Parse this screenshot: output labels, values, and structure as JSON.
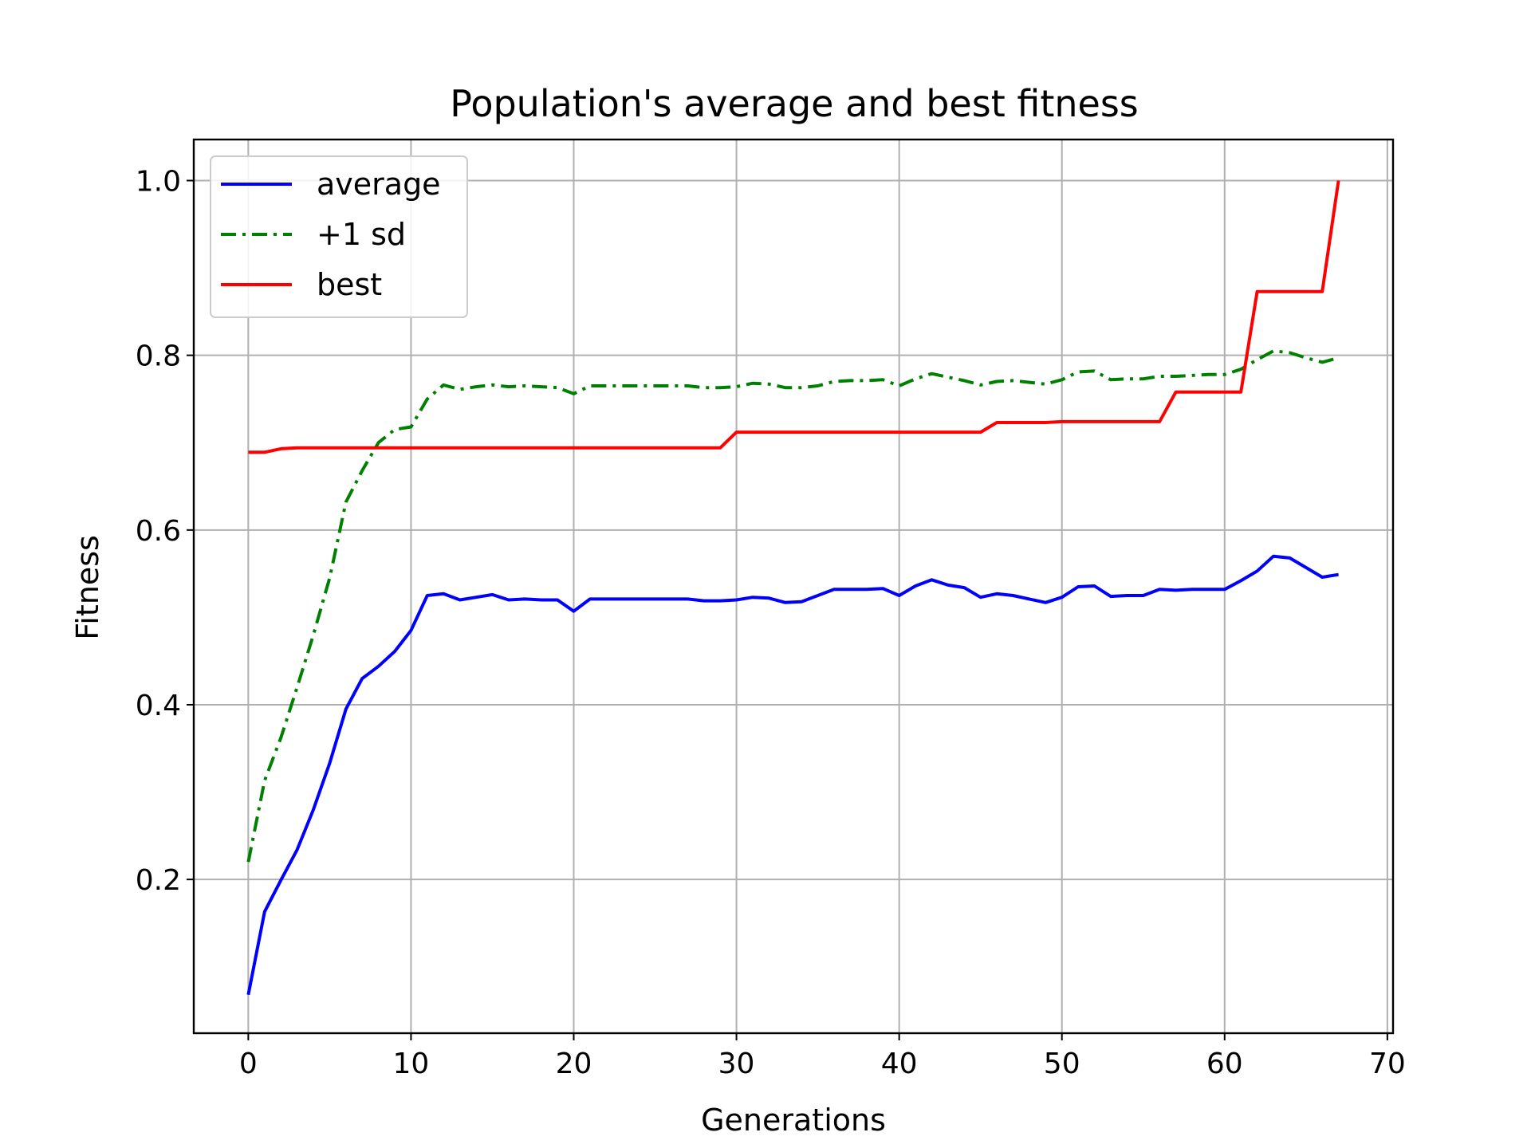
{
  "chart_data": {
    "type": "line",
    "title": "Population's average and best fitness",
    "xlabel": "Generations",
    "ylabel": "Fitness",
    "xlim": [
      -3.35,
      70.35
    ],
    "ylim": [
      0.024,
      1.047
    ],
    "xticks": [
      "0",
      "10",
      "20",
      "30",
      "40",
      "50",
      "60",
      "70"
    ],
    "xtick_values": [
      0,
      10,
      20,
      30,
      40,
      50,
      60,
      70
    ],
    "yticks": [
      "0.2",
      "0.4",
      "0.6",
      "0.8",
      "1.0"
    ],
    "ytick_values": [
      0.2,
      0.4,
      0.6,
      0.8,
      1.0
    ],
    "grid": true,
    "legend_position": "upper-left",
    "series": [
      {
        "name": "average",
        "color": "#0000ff",
        "dash": "solid",
        "values": [
          0.068,
          0.163,
          0.199,
          0.234,
          0.28,
          0.333,
          0.395,
          0.43,
          0.444,
          0.461,
          0.485,
          0.525,
          0.527,
          0.52,
          0.523,
          0.526,
          0.52,
          0.521,
          0.52,
          0.52,
          0.507,
          0.521,
          0.521,
          0.521,
          0.521,
          0.521,
          0.521,
          0.521,
          0.519,
          0.519,
          0.52,
          0.523,
          0.522,
          0.517,
          0.518,
          0.525,
          0.532,
          0.532,
          0.532,
          0.533,
          0.525,
          0.536,
          0.543,
          0.537,
          0.534,
          0.523,
          0.527,
          0.525,
          0.521,
          0.517,
          0.523,
          0.535,
          0.536,
          0.524,
          0.525,
          0.525,
          0.532,
          0.531,
          0.532,
          0.532,
          0.532,
          0.542,
          0.553,
          0.57,
          0.568,
          0.557,
          0.546,
          0.549
        ]
      },
      {
        "name": "+1 sd",
        "color": "#008000",
        "dash": "dashdot",
        "values": [
          0.22,
          0.313,
          0.362,
          0.42,
          0.48,
          0.545,
          0.632,
          0.668,
          0.7,
          0.715,
          0.718,
          0.75,
          0.766,
          0.761,
          0.764,
          0.766,
          0.764,
          0.765,
          0.764,
          0.763,
          0.756,
          0.765,
          0.765,
          0.765,
          0.765,
          0.765,
          0.765,
          0.765,
          0.763,
          0.763,
          0.764,
          0.768,
          0.767,
          0.763,
          0.763,
          0.765,
          0.77,
          0.771,
          0.771,
          0.772,
          0.765,
          0.773,
          0.779,
          0.775,
          0.771,
          0.766,
          0.77,
          0.771,
          0.769,
          0.767,
          0.772,
          0.781,
          0.782,
          0.772,
          0.773,
          0.773,
          0.776,
          0.776,
          0.777,
          0.778,
          0.778,
          0.784,
          0.795,
          0.805,
          0.803,
          0.797,
          0.792,
          0.797
        ]
      },
      {
        "name": "best",
        "color": "#ff0000",
        "dash": "solid",
        "values": [
          0.689,
          0.689,
          0.693,
          0.694,
          0.694,
          0.694,
          0.694,
          0.694,
          0.694,
          0.694,
          0.694,
          0.694,
          0.694,
          0.694,
          0.694,
          0.694,
          0.694,
          0.694,
          0.694,
          0.694,
          0.694,
          0.694,
          0.694,
          0.694,
          0.694,
          0.694,
          0.694,
          0.694,
          0.694,
          0.694,
          0.712,
          0.712,
          0.712,
          0.712,
          0.712,
          0.712,
          0.712,
          0.712,
          0.712,
          0.712,
          0.712,
          0.712,
          0.712,
          0.712,
          0.712,
          0.712,
          0.723,
          0.723,
          0.723,
          0.723,
          0.724,
          0.724,
          0.724,
          0.724,
          0.724,
          0.724,
          0.724,
          0.758,
          0.758,
          0.758,
          0.758,
          0.758,
          0.873,
          0.873,
          0.873,
          0.873,
          0.873,
          1.0
        ]
      }
    ]
  }
}
